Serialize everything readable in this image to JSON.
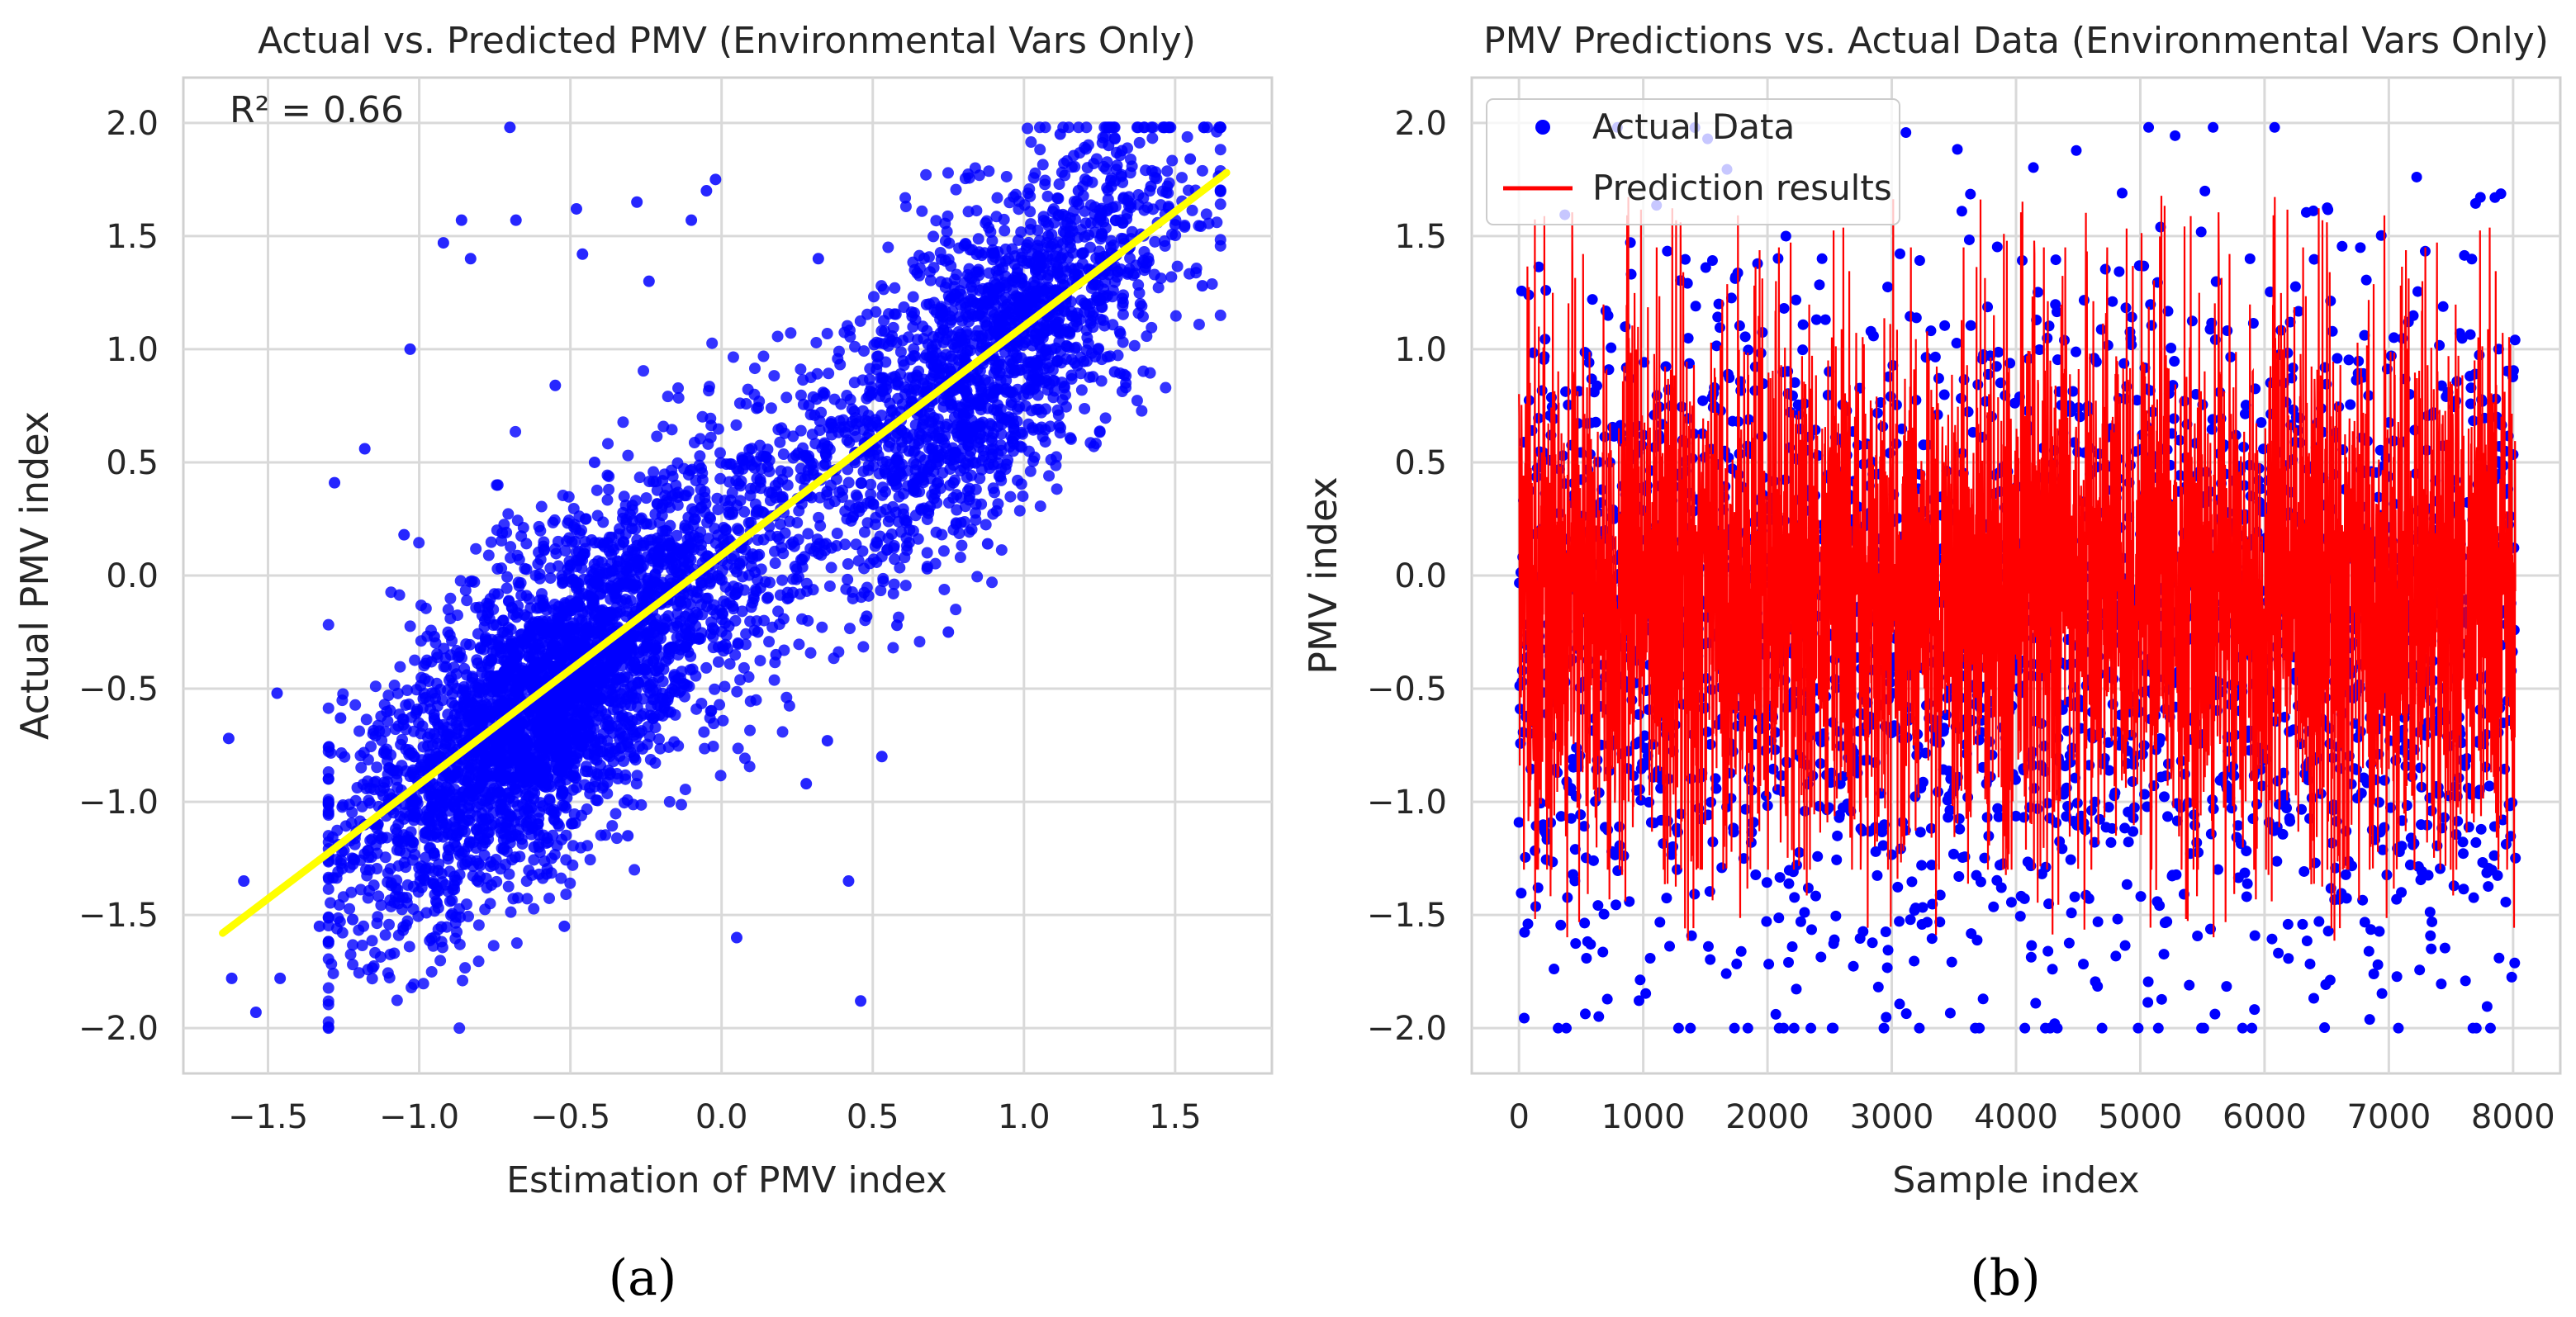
{
  "chart_data": [
    {
      "type": "scatter",
      "title": "Actual vs. Predicted PMV (Environmental Vars Only)",
      "xlabel": "Estimation of PMV index",
      "ylabel": "Actual PMV index",
      "xlim": [
        -1.78,
        1.82
      ],
      "ylim": [
        -2.2,
        2.2
      ],
      "xticks": [
        "−1.5",
        "−1.0",
        "−0.5",
        "0.0",
        "0.5",
        "1.0",
        "1.5"
      ],
      "xtick_values": [
        -1.5,
        -1.0,
        -0.5,
        0.0,
        0.5,
        1.0,
        1.5
      ],
      "yticks": [
        "−2.0",
        "−1.5",
        "−1.0",
        "−0.5",
        "0.0",
        "0.5",
        "1.0",
        "1.5",
        "2.0"
      ],
      "ytick_values": [
        -2.0,
        -1.5,
        -1.0,
        -0.5,
        0.0,
        0.5,
        1.0,
        1.5,
        2.0
      ],
      "grid": true,
      "annotation": "R² = 0.66",
      "point_color": "#0000ff",
      "fit_line": {
        "x": [
          -1.65,
          1.67
        ],
        "y": [
          -1.58,
          1.78
        ],
        "color": "#ffff00"
      },
      "series": [
        {
          "points": [
            [
              -1.63,
              -0.72
            ],
            [
              -1.62,
              -1.78
            ],
            [
              -1.58,
              -1.35
            ],
            [
              -1.54,
              -1.93
            ],
            [
              -1.47,
              -0.52
            ],
            [
              -1.46,
              -1.78
            ],
            [
              -1.33,
              -1.55
            ],
            [
              -1.28,
              0.41
            ],
            [
              -1.26,
              -0.63
            ],
            [
              -1.22,
              -1.52
            ],
            [
              -1.18,
              0.56
            ],
            [
              -1.15,
              -1.1
            ],
            [
              -1.1,
              -0.85
            ],
            [
              -1.05,
              0.18
            ],
            [
              -1.03,
              1.0
            ],
            [
              -0.95,
              -0.27
            ],
            [
              -0.92,
              1.47
            ],
            [
              -0.86,
              1.57
            ],
            [
              -0.83,
              1.4
            ],
            [
              -0.8,
              -1.15
            ],
            [
              -0.74,
              0.4
            ],
            [
              -0.7,
              1.98
            ],
            [
              -0.68,
              1.57
            ],
            [
              -0.62,
              -1.2
            ],
            [
              -0.55,
              0.84
            ],
            [
              -0.52,
              -1.55
            ],
            [
              -0.48,
              1.62
            ],
            [
              -0.46,
              1.42
            ],
            [
              -0.42,
              0.5
            ],
            [
              -0.37,
              -0.88
            ],
            [
              -0.31,
              -1.15
            ],
            [
              -0.28,
              1.65
            ],
            [
              -0.24,
              1.3
            ],
            [
              -0.2,
              -0.12
            ],
            [
              -0.15,
              0.05
            ],
            [
              -0.1,
              1.57
            ],
            [
              -0.05,
              1.7
            ],
            [
              -0.02,
              1.75
            ],
            [
              0.05,
              -1.6
            ],
            [
              0.12,
              -0.25
            ],
            [
              0.18,
              -0.35
            ],
            [
              0.28,
              -0.92
            ],
            [
              0.32,
              1.4
            ],
            [
              0.35,
              -0.73
            ],
            [
              0.42,
              -1.35
            ],
            [
              0.46,
              -1.88
            ],
            [
              0.48,
              -0.18
            ],
            [
              0.53,
              -0.8
            ],
            [
              0.58,
              -0.22
            ],
            [
              0.62,
              0.55
            ],
            [
              0.68,
              0.03
            ],
            [
              0.75,
              -0.25
            ],
            [
              0.82,
              0.35
            ],
            [
              0.88,
              0.14
            ],
            [
              0.95,
              0.7
            ],
            [
              1.02,
              0.82
            ],
            [
              1.08,
              1.5
            ],
            [
              1.12,
              1.95
            ],
            [
              1.18,
              1.7
            ],
            [
              1.22,
              1.2
            ],
            [
              1.28,
              1.9
            ],
            [
              1.3,
              0.9
            ],
            [
              1.35,
              1.45
            ],
            [
              1.42,
              1.72
            ],
            [
              1.46,
              1.98
            ],
            [
              1.5,
              1.55
            ],
            [
              1.55,
              1.84
            ],
            [
              1.59,
              1.28
            ],
            [
              1.65,
              1.7
            ],
            [
              -0.66,
              -0.42
            ]
          ]
        }
      ]
    },
    {
      "type": "line",
      "title": "PMV Predictions vs. Actual Data (Environmental Vars Only)",
      "xlabel": "Sample index",
      "ylabel": "PMV index",
      "xlim": [
        -380,
        8380
      ],
      "ylim": [
        -2.2,
        2.2
      ],
      "xticks": [
        "0",
        "1000",
        "2000",
        "3000",
        "4000",
        "5000",
        "6000",
        "7000",
        "8000"
      ],
      "xtick_values": [
        0,
        1000,
        2000,
        3000,
        4000,
        5000,
        6000,
        7000,
        8000
      ],
      "yticks": [
        "−2.0",
        "−1.5",
        "−1.0",
        "−0.5",
        "0.0",
        "0.5",
        "1.0",
        "1.5",
        "2.0"
      ],
      "ytick_values": [
        -2.0,
        -1.5,
        -1.0,
        -0.5,
        0.0,
        0.5,
        1.0,
        1.5,
        2.0
      ],
      "grid": true,
      "legend_placement": "top-left",
      "n_samples": 8020,
      "series": [
        {
          "name": "Actual Data",
          "style": "points",
          "color": "#0000ff",
          "range": [
            -2.0,
            1.98
          ]
        },
        {
          "name": "Prediction results",
          "style": "line",
          "color": "#ff0000",
          "range": [
            -1.62,
            1.7
          ]
        }
      ]
    }
  ],
  "panel_labels": {
    "a": "(a)",
    "b": "(b)"
  }
}
